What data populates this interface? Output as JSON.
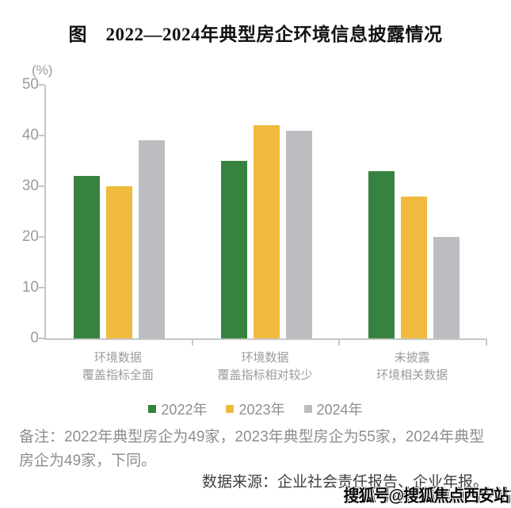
{
  "title": "图　2022—2024年典型房企环境信息披露情况",
  "chart_data": {
    "type": "bar",
    "title": "2022—2024年典型房企环境信息披露情况",
    "xlabel": "",
    "ylabel": "(%)",
    "unit_label": "(%)",
    "ylim": [
      0,
      50
    ],
    "yticks": [
      0,
      10,
      20,
      30,
      40,
      50
    ],
    "grid": false,
    "legend_position": "bottom",
    "axis_color": "#C6C6C6",
    "tick_label_color": "#9B9B9B",
    "categories": [
      {
        "line1": "环境数据",
        "line2": "覆盖指标全面"
      },
      {
        "line1": "环境数据",
        "line2": "覆盖指标相对较少"
      },
      {
        "line1": "未披露",
        "line2": "环境相关数据"
      }
    ],
    "series": [
      {
        "name": "2022年",
        "color": "#38823F",
        "values": [
          32,
          35,
          33
        ]
      },
      {
        "name": "2023年",
        "color": "#EFBA3D",
        "values": [
          30,
          42,
          28
        ]
      },
      {
        "name": "2024年",
        "color": "#BBBDC1",
        "values": [
          39,
          41,
          20
        ]
      }
    ]
  },
  "footnote": "备注：2022年典型房企为49家，2023年典型房企为55家，2024年典型房企为49家，下同。",
  "source": "数据来源：企业社会责任报告、企业年报。",
  "watermark": "搜狐号@搜狐焦点西安站"
}
